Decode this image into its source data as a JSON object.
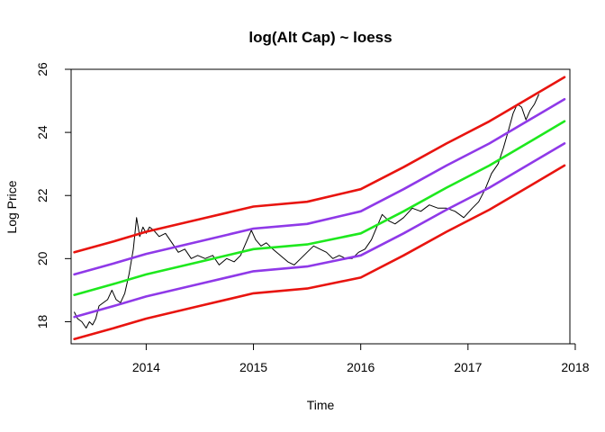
{
  "chart_data": {
    "type": "line",
    "title": "log(Alt Cap) ~ loess",
    "xlabel": "Time",
    "ylabel": "Log Price",
    "xlim": [
      2013.3,
      2017.95
    ],
    "ylim": [
      17.3,
      26.0
    ],
    "x_ticks": [
      2014,
      2015,
      2016,
      2017,
      2018
    ],
    "x_tick_labels": [
      "2014",
      "2015",
      "2016",
      "2017",
      "2018"
    ],
    "y_ticks": [
      18,
      20,
      22,
      24,
      26
    ],
    "y_tick_labels": [
      "18",
      "20",
      "22",
      "24",
      "26"
    ],
    "grid": false,
    "series": [
      {
        "role": "observed",
        "color": "#000000",
        "x": [
          2013.33,
          2013.36,
          2013.4,
          2013.44,
          2013.47,
          2013.5,
          2013.53,
          2013.56,
          2013.6,
          2013.64,
          2013.68,
          2013.72,
          2013.76,
          2013.8,
          2013.84,
          2013.88,
          2013.91,
          2013.94,
          2013.97,
          2014.0,
          2014.03,
          2014.07,
          2014.12,
          2014.18,
          2014.24,
          2014.3,
          2014.36,
          2014.42,
          2014.48,
          2014.55,
          2014.62,
          2014.68,
          2014.75,
          2014.82,
          2014.88,
          2014.93,
          2014.98,
          2015.02,
          2015.07,
          2015.12,
          2015.18,
          2015.25,
          2015.32,
          2015.38,
          2015.44,
          2015.5,
          2015.56,
          2015.62,
          2015.68,
          2015.74,
          2015.8,
          2015.86,
          2015.92,
          2015.98,
          2016.04,
          2016.1,
          2016.15,
          2016.2,
          2016.26,
          2016.32,
          2016.4,
          2016.48,
          2016.56,
          2016.64,
          2016.72,
          2016.8,
          2016.88,
          2016.96,
          2017.04,
          2017.1,
          2017.16,
          2017.22,
          2017.28,
          2017.33,
          2017.38,
          2017.42,
          2017.46,
          2017.5,
          2017.54,
          2017.58,
          2017.62,
          2017.66
        ],
        "y": [
          18.3,
          18.1,
          18.0,
          17.8,
          18.0,
          17.9,
          18.1,
          18.5,
          18.6,
          18.7,
          19.0,
          18.7,
          18.6,
          18.9,
          19.5,
          20.3,
          21.3,
          20.7,
          21.0,
          20.8,
          21.0,
          20.9,
          20.7,
          20.8,
          20.5,
          20.2,
          20.3,
          20.0,
          20.1,
          20.0,
          20.1,
          19.8,
          20.0,
          19.9,
          20.1,
          20.5,
          20.9,
          20.6,
          20.4,
          20.5,
          20.3,
          20.1,
          19.9,
          19.8,
          20.0,
          20.2,
          20.4,
          20.3,
          20.2,
          20.0,
          20.1,
          20.0,
          20.0,
          20.2,
          20.3,
          20.6,
          21.0,
          21.4,
          21.2,
          21.1,
          21.3,
          21.6,
          21.5,
          21.7,
          21.6,
          21.6,
          21.5,
          21.3,
          21.6,
          21.8,
          22.2,
          22.7,
          23.0,
          23.5,
          24.1,
          24.6,
          24.9,
          24.8,
          24.4,
          24.7,
          24.9,
          25.2
        ]
      },
      {
        "role": "upper-outer",
        "color": "#e8140f",
        "x": [
          2013.33,
          2013.7,
          2014.0,
          2014.5,
          2015.0,
          2015.5,
          2016.0,
          2016.4,
          2016.8,
          2017.2,
          2017.6,
          2017.9
        ],
        "y": [
          20.2,
          20.55,
          20.85,
          21.25,
          21.65,
          21.8,
          22.2,
          22.9,
          23.65,
          24.35,
          25.15,
          25.75
        ]
      },
      {
        "role": "upper-inner",
        "color": "#8f39e8",
        "x": [
          2013.33,
          2013.7,
          2014.0,
          2014.5,
          2015.0,
          2015.5,
          2016.0,
          2016.4,
          2016.8,
          2017.2,
          2017.6,
          2017.9
        ],
        "y": [
          19.5,
          19.85,
          20.15,
          20.55,
          20.95,
          21.1,
          21.5,
          22.2,
          22.95,
          23.65,
          24.45,
          25.05
        ]
      },
      {
        "role": "center",
        "color": "#1ee81e",
        "x": [
          2013.33,
          2013.7,
          2014.0,
          2014.5,
          2015.0,
          2015.5,
          2016.0,
          2016.4,
          2016.8,
          2017.2,
          2017.6,
          2017.9
        ],
        "y": [
          18.85,
          19.2,
          19.5,
          19.9,
          20.3,
          20.45,
          20.8,
          21.5,
          22.25,
          22.95,
          23.75,
          24.35
        ]
      },
      {
        "role": "lower-inner",
        "color": "#8f39e8",
        "x": [
          2013.33,
          2013.7,
          2014.0,
          2014.5,
          2015.0,
          2015.5,
          2016.0,
          2016.4,
          2016.8,
          2017.2,
          2017.6,
          2017.9
        ],
        "y": [
          18.15,
          18.5,
          18.8,
          19.2,
          19.6,
          19.75,
          20.1,
          20.8,
          21.55,
          22.25,
          23.05,
          23.65
        ]
      },
      {
        "role": "lower-outer",
        "color": "#e8140f",
        "x": [
          2013.33,
          2013.7,
          2014.0,
          2014.5,
          2015.0,
          2015.5,
          2016.0,
          2016.4,
          2016.8,
          2017.2,
          2017.6,
          2017.9
        ],
        "y": [
          17.45,
          17.8,
          18.1,
          18.5,
          18.9,
          19.05,
          19.4,
          20.1,
          20.85,
          21.55,
          22.35,
          22.95
        ]
      }
    ]
  }
}
